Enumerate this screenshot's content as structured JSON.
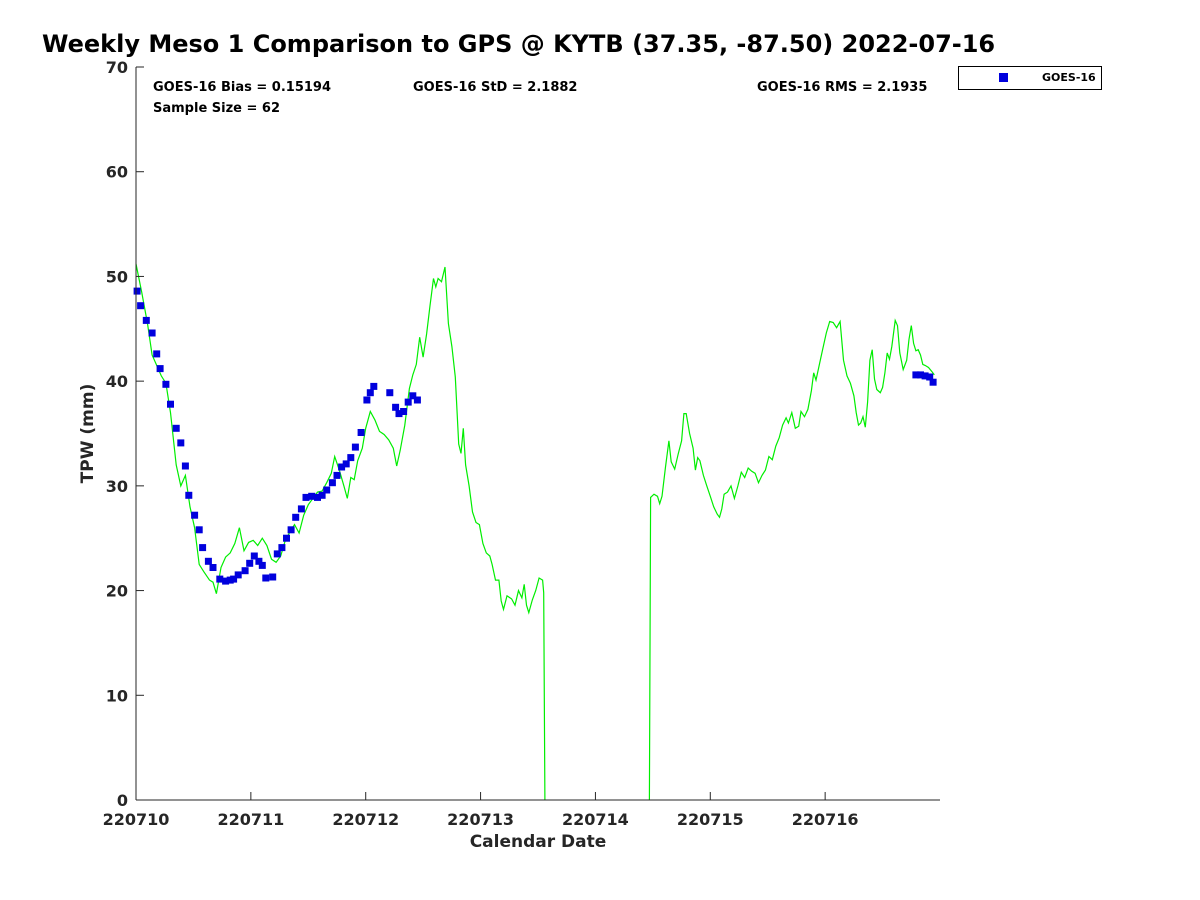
{
  "chart_data": {
    "type": "scatter",
    "title": "Weekly Meso 1 Comparison to GPS @ KYTB (37.35, -87.50) 2022-07-16",
    "xlabel": "Calendar Date",
    "ylabel": "TPW (mm)",
    "x_ticks": [
      "220710",
      "220711",
      "220712",
      "220713",
      "220714",
      "220715",
      "220716"
    ],
    "x_range": [
      "220710",
      "220717"
    ],
    "ylim": [
      0,
      70
    ],
    "y_ticks": [
      0,
      10,
      20,
      30,
      40,
      50,
      60,
      70
    ],
    "grid": false,
    "legend_position": "top-right",
    "legend": [
      "GOES-16"
    ],
    "stats": {
      "bias": "GOES-16 Bias = 0.15194",
      "std": "GOES-16 StD = 2.1882",
      "rms": "GOES-16 RMS = 2.1935",
      "sample": "Sample Size = 62"
    },
    "series": [
      {
        "name": "GOES-16",
        "type": "scatter",
        "color": "#0000dd",
        "x": [
          0.01,
          0.04,
          0.09,
          0.14,
          0.18,
          0.21,
          0.26,
          0.3,
          0.35,
          0.39,
          0.43,
          0.46,
          0.51,
          0.55,
          0.58,
          0.63,
          0.67,
          0.73,
          0.78,
          0.82,
          0.85,
          0.89,
          0.95,
          0.99,
          1.03,
          1.07,
          1.1,
          1.13,
          1.19,
          1.23,
          1.27,
          1.31,
          1.35,
          1.39,
          1.44,
          1.48,
          1.53,
          1.58,
          1.62,
          1.66,
          1.71,
          1.75,
          1.79,
          1.83,
          1.87,
          1.91,
          1.96,
          2.01,
          2.04,
          2.07,
          2.21,
          2.26,
          2.29,
          2.33,
          2.37,
          2.41,
          2.45,
          6.79,
          6.83,
          6.87,
          6.91,
          6.94
        ],
        "y": [
          48.6,
          47.2,
          45.8,
          44.6,
          42.6,
          41.2,
          39.7,
          37.8,
          35.5,
          34.1,
          31.9,
          29.1,
          27.2,
          25.8,
          24.1,
          22.8,
          22.2,
          21.1,
          20.9,
          21.0,
          21.1,
          21.5,
          21.9,
          22.6,
          23.3,
          22.8,
          22.4,
          21.2,
          21.3,
          23.5,
          24.1,
          25.0,
          25.8,
          27.0,
          27.8,
          28.9,
          29.0,
          28.9,
          29.1,
          29.6,
          30.3,
          31.0,
          31.8,
          32.1,
          32.7,
          33.7,
          35.1,
          38.2,
          38.9,
          39.5,
          38.9,
          37.5,
          36.9,
          37.1,
          38.0,
          38.6,
          38.2,
          40.6,
          40.6,
          40.5,
          40.4,
          39.9
        ]
      },
      {
        "name": "",
        "type": "line",
        "color": "#00ee00",
        "segments": [
          [
            [
              0.0,
              51.2
            ],
            [
              0.05,
              48.5
            ],
            [
              0.1,
              45.5
            ],
            [
              0.14,
              42.5
            ],
            [
              0.18,
              41.5
            ],
            [
              0.22,
              40.5
            ],
            [
              0.26,
              39.8
            ],
            [
              0.3,
              37.0
            ],
            [
              0.35,
              32.0
            ],
            [
              0.39,
              30.0
            ],
            [
              0.43,
              31.0
            ],
            [
              0.47,
              28.0
            ],
            [
              0.51,
              26.0
            ],
            [
              0.55,
              22.5
            ],
            [
              0.59,
              21.8
            ],
            [
              0.64,
              21.0
            ],
            [
              0.67,
              20.8
            ],
            [
              0.7,
              19.7
            ],
            [
              0.74,
              22.2
            ],
            [
              0.78,
              23.2
            ],
            [
              0.82,
              23.6
            ],
            [
              0.86,
              24.5
            ],
            [
              0.9,
              26.0
            ],
            [
              0.94,
              23.8
            ],
            [
              0.98,
              24.6
            ],
            [
              1.02,
              24.8
            ],
            [
              1.06,
              24.3
            ],
            [
              1.1,
              25.0
            ],
            [
              1.14,
              24.3
            ],
            [
              1.18,
              23.0
            ],
            [
              1.22,
              22.7
            ],
            [
              1.26,
              23.3
            ],
            [
              1.3,
              24.8
            ],
            [
              1.34,
              25.6
            ],
            [
              1.38,
              26.3
            ],
            [
              1.42,
              25.5
            ],
            [
              1.46,
              27.2
            ],
            [
              1.5,
              28.2
            ],
            [
              1.54,
              28.8
            ],
            [
              1.58,
              29.4
            ],
            [
              1.62,
              29.5
            ],
            [
              1.66,
              30.3
            ],
            [
              1.7,
              31.2
            ],
            [
              1.73,
              32.8
            ],
            [
              1.77,
              31.5
            ],
            [
              1.81,
              30.0
            ],
            [
              1.84,
              28.8
            ],
            [
              1.87,
              30.8
            ],
            [
              1.9,
              30.6
            ],
            [
              1.93,
              32.4
            ],
            [
              1.97,
              33.6
            ],
            [
              2.0,
              35.5
            ],
            [
              2.04,
              37.1
            ],
            [
              2.08,
              36.3
            ],
            [
              2.12,
              35.2
            ],
            [
              2.16,
              34.9
            ],
            [
              2.2,
              34.4
            ],
            [
              2.24,
              33.6
            ],
            [
              2.27,
              31.9
            ],
            [
              2.3,
              33.4
            ],
            [
              2.34,
              35.8
            ],
            [
              2.38,
              39.3
            ],
            [
              2.41,
              40.6
            ],
            [
              2.44,
              41.6
            ],
            [
              2.47,
              44.2
            ],
            [
              2.5,
              42.3
            ],
            [
              2.53,
              44.5
            ],
            [
              2.56,
              47.2
            ],
            [
              2.59,
              49.8
            ],
            [
              2.61,
              49.0
            ],
            [
              2.63,
              49.8
            ],
            [
              2.66,
              49.5
            ],
            [
              2.69,
              50.9
            ],
            [
              2.72,
              45.5
            ],
            [
              2.75,
              43.3
            ],
            [
              2.78,
              40.4
            ],
            [
              2.81,
              34.0
            ],
            [
              2.83,
              33.1
            ],
            [
              2.85,
              35.5
            ],
            [
              2.87,
              32.0
            ],
            [
              2.9,
              30.0
            ],
            [
              2.93,
              27.5
            ],
            [
              2.96,
              26.5
            ],
            [
              2.99,
              26.3
            ],
            [
              3.02,
              24.5
            ],
            [
              3.05,
              23.6
            ],
            [
              3.08,
              23.3
            ],
            [
              3.1,
              22.5
            ],
            [
              3.13,
              21.0
            ],
            [
              3.16,
              21.0
            ],
            [
              3.18,
              19.0
            ],
            [
              3.2,
              18.2
            ],
            [
              3.23,
              19.5
            ],
            [
              3.27,
              19.2
            ],
            [
              3.3,
              18.6
            ],
            [
              3.33,
              20.0
            ],
            [
              3.36,
              19.3
            ],
            [
              3.38,
              20.6
            ],
            [
              3.4,
              18.6
            ],
            [
              3.42,
              17.9
            ],
            [
              3.45,
              19.1
            ],
            [
              3.48,
              20.0
            ],
            [
              3.51,
              21.2
            ],
            [
              3.54,
              21.0
            ],
            [
              3.55,
              19.8
            ],
            [
              3.56,
              0.0
            ]
          ],
          [
            [
              4.47,
              0.0
            ],
            [
              4.48,
              28.9
            ],
            [
              4.51,
              29.2
            ],
            [
              4.54,
              29.0
            ],
            [
              4.56,
              28.3
            ],
            [
              4.58,
              29.0
            ],
            [
              4.61,
              31.8
            ],
            [
              4.64,
              34.3
            ],
            [
              4.66,
              32.3
            ],
            [
              4.69,
              31.6
            ],
            [
              4.72,
              33.0
            ],
            [
              4.75,
              34.3
            ],
            [
              4.77,
              36.9
            ],
            [
              4.79,
              36.9
            ],
            [
              4.82,
              35.0
            ],
            [
              4.85,
              33.6
            ],
            [
              4.87,
              31.5
            ],
            [
              4.89,
              32.7
            ],
            [
              4.91,
              32.4
            ],
            [
              4.94,
              31.0
            ],
            [
              4.97,
              30.0
            ],
            [
              5.0,
              29.0
            ],
            [
              5.03,
              28.0
            ],
            [
              5.06,
              27.3
            ],
            [
              5.08,
              27.0
            ],
            [
              5.1,
              27.8
            ],
            [
              5.12,
              29.2
            ],
            [
              5.15,
              29.4
            ],
            [
              5.18,
              30.0
            ],
            [
              5.21,
              28.8
            ],
            [
              5.24,
              30.0
            ],
            [
              5.27,
              31.3
            ],
            [
              5.3,
              30.8
            ],
            [
              5.33,
              31.7
            ],
            [
              5.36,
              31.4
            ],
            [
              5.39,
              31.2
            ],
            [
              5.42,
              30.3
            ],
            [
              5.45,
              31.0
            ],
            [
              5.48,
              31.5
            ],
            [
              5.51,
              32.8
            ],
            [
              5.54,
              32.5
            ],
            [
              5.57,
              33.8
            ],
            [
              5.6,
              34.6
            ],
            [
              5.63,
              35.8
            ],
            [
              5.66,
              36.5
            ],
            [
              5.68,
              36.0
            ],
            [
              5.71,
              37.0
            ],
            [
              5.74,
              35.5
            ],
            [
              5.77,
              35.7
            ],
            [
              5.79,
              37.1
            ],
            [
              5.82,
              36.6
            ],
            [
              5.85,
              37.3
            ],
            [
              5.88,
              39.1
            ],
            [
              5.9,
              40.8
            ],
            [
              5.92,
              40.1
            ],
            [
              5.95,
              41.6
            ],
            [
              5.98,
              43.1
            ],
            [
              6.01,
              44.6
            ],
            [
              6.04,
              45.7
            ],
            [
              6.07,
              45.6
            ],
            [
              6.1,
              45.1
            ],
            [
              6.13,
              45.7
            ],
            [
              6.16,
              42.0
            ],
            [
              6.19,
              40.5
            ],
            [
              6.22,
              39.8
            ],
            [
              6.25,
              38.6
            ],
            [
              6.27,
              37.0
            ],
            [
              6.29,
              35.8
            ],
            [
              6.31,
              36.0
            ],
            [
              6.33,
              36.6
            ],
            [
              6.35,
              35.6
            ],
            [
              6.37,
              38.0
            ],
            [
              6.39,
              42.0
            ],
            [
              6.41,
              43.0
            ],
            [
              6.43,
              40.2
            ],
            [
              6.45,
              39.2
            ],
            [
              6.48,
              38.9
            ],
            [
              6.5,
              39.4
            ],
            [
              6.52,
              40.8
            ],
            [
              6.54,
              42.7
            ],
            [
              6.56,
              42.1
            ],
            [
              6.58,
              43.3
            ],
            [
              6.61,
              45.8
            ],
            [
              6.63,
              45.3
            ],
            [
              6.65,
              42.7
            ],
            [
              6.68,
              41.1
            ],
            [
              6.71,
              42.0
            ],
            [
              6.73,
              44.0
            ],
            [
              6.75,
              45.3
            ],
            [
              6.77,
              43.6
            ],
            [
              6.79,
              42.9
            ],
            [
              6.81,
              43.0
            ],
            [
              6.83,
              42.5
            ],
            [
              6.85,
              41.6
            ],
            [
              6.87,
              41.5
            ],
            [
              6.9,
              41.3
            ],
            [
              6.93,
              40.9
            ],
            [
              6.95,
              40.6
            ]
          ]
        ]
      }
    ]
  }
}
